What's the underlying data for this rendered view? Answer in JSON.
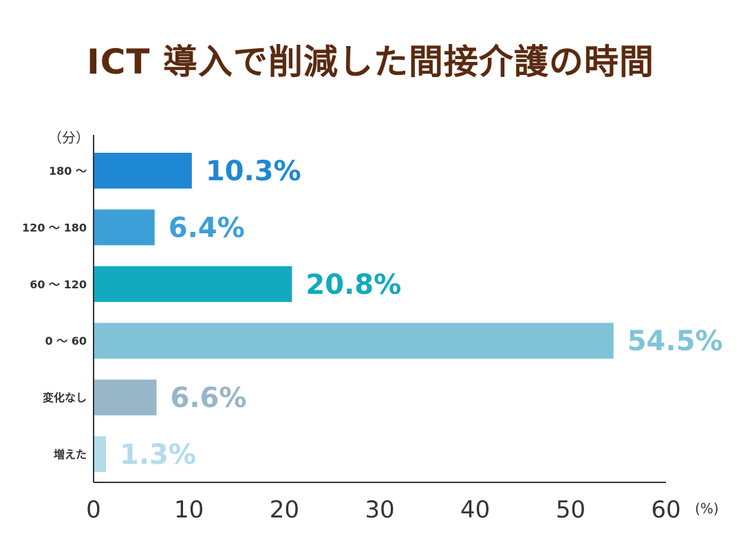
{
  "chart_data": {
    "type": "bar",
    "orientation": "horizontal",
    "title": "ICT 導入で削減した間接介護の時間",
    "y_unit": "（分）",
    "x_unit": "(%)",
    "categories": [
      "180 ～",
      "120 ～ 180",
      "60 ～ 120",
      "0 ～ 60",
      "変化なし",
      "増えた"
    ],
    "values": [
      10.3,
      6.4,
      20.8,
      54.5,
      6.6,
      1.3
    ],
    "value_labels": [
      "10.3%",
      "6.4%",
      "20.8%",
      "54.5%",
      "6.6%",
      "1.3%"
    ],
    "colors": [
      "#1e88d4",
      "#3d9fd8",
      "#12aabf",
      "#80c3d8",
      "#97b6c8",
      "#b3dcea"
    ],
    "xlim": [
      0,
      60
    ],
    "xticks": [
      "0",
      "10",
      "20",
      "30",
      "40",
      "50",
      "60"
    ],
    "grid": false
  }
}
